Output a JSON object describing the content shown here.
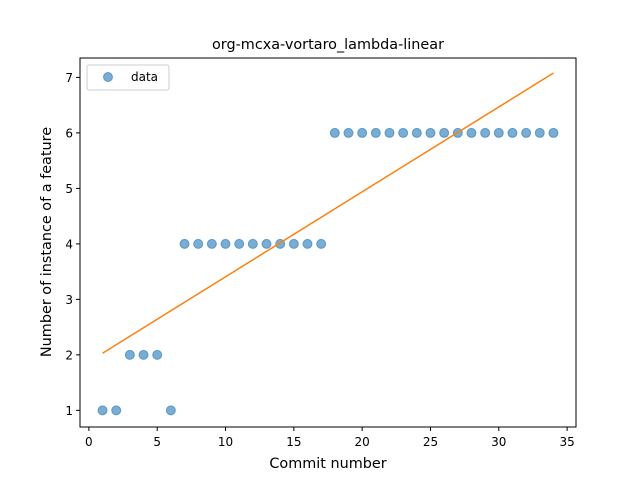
{
  "chart_data": {
    "type": "scatter",
    "title": "org-mcxa-vortaro_lambda-linear",
    "xlabel": "Commit number",
    "ylabel": "Number of instance of a feature",
    "xlim": [
      -0.65,
      35.65
    ],
    "ylim": [
      0.7,
      7.35
    ],
    "xticks": [
      0,
      5,
      10,
      15,
      20,
      25,
      30,
      35
    ],
    "yticks": [
      1,
      2,
      3,
      4,
      5,
      6,
      7
    ],
    "grid": false,
    "legend_position": "top-left",
    "series": [
      {
        "name": "data",
        "kind": "scatter",
        "color": "#1f77b4",
        "x": [
          1,
          2,
          3,
          4,
          5,
          6,
          7,
          8,
          9,
          10,
          11,
          12,
          13,
          14,
          15,
          16,
          17,
          18,
          19,
          20,
          21,
          22,
          23,
          24,
          25,
          26,
          27,
          28,
          29,
          30,
          31,
          32,
          33,
          34
        ],
        "y": [
          1,
          1,
          2,
          2,
          2,
          1,
          4,
          4,
          4,
          4,
          4,
          4,
          4,
          4,
          4,
          4,
          4,
          6,
          6,
          6,
          6,
          6,
          6,
          6,
          6,
          6,
          6,
          6,
          6,
          6,
          6,
          6,
          6,
          6
        ]
      },
      {
        "kind": "line",
        "color": "#ff7f0e",
        "x": [
          1,
          34
        ],
        "y": [
          2.03,
          7.08
        ]
      }
    ]
  }
}
